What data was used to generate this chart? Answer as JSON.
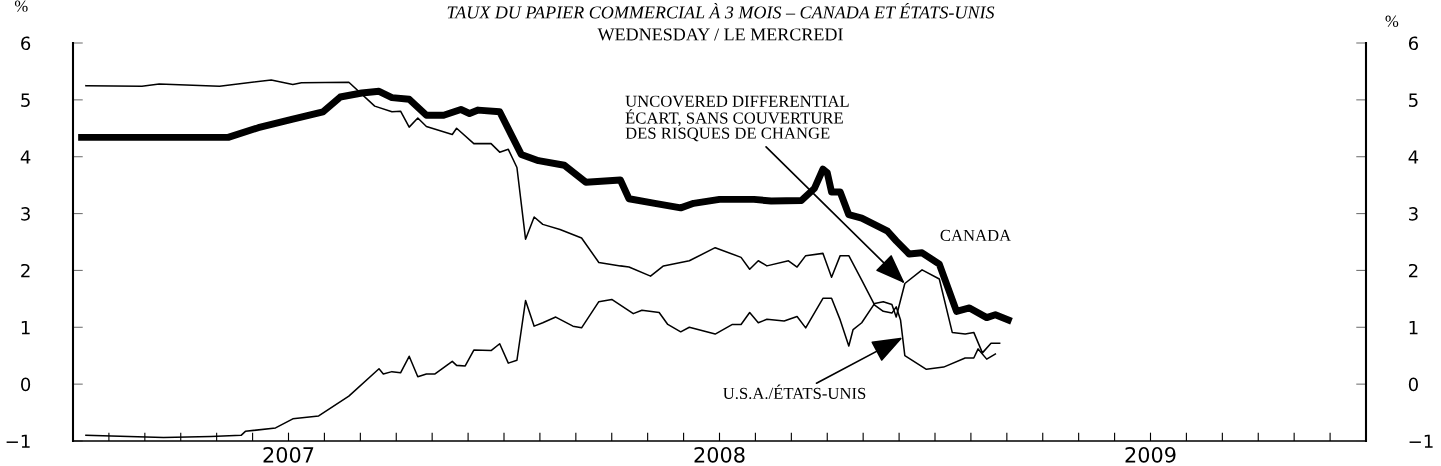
{
  "chart_data": {
    "type": "line",
    "title": "TAUX DU PAPIER COMMERCIAL À 3 MOIS – CANADA ET ÉTATS-UNIS",
    "subtitle": "WEDNESDAY / LE MERCREDI",
    "ylabel": "%",
    "y2label": "%",
    "xlim": [
      2007,
      2010
    ],
    "xticks": [
      {
        "value": 2007.5,
        "label": "2007"
      },
      {
        "value": 2008.5,
        "label": "2008"
      },
      {
        "value": 2009.5,
        "label": "2009"
      },
      {
        "value": 2007.0833,
        "label": null
      },
      {
        "value": 2007.1667,
        "label": null
      },
      {
        "value": 2007.25,
        "label": null
      },
      {
        "value": 2007.3333,
        "label": null
      },
      {
        "value": 2007.4167,
        "label": null
      },
      {
        "value": 2007.5,
        "label": null
      },
      {
        "value": 2007.5833,
        "label": null
      },
      {
        "value": 2007.6667,
        "label": null
      },
      {
        "value": 2007.75,
        "label": null
      },
      {
        "value": 2007.8333,
        "label": null
      },
      {
        "value": 2007.9167,
        "label": null
      },
      {
        "value": 2008,
        "label": null
      },
      {
        "value": 2008.0833,
        "label": null
      },
      {
        "value": 2008.1667,
        "label": null
      },
      {
        "value": 2008.25,
        "label": null
      },
      {
        "value": 2008.3333,
        "label": null
      },
      {
        "value": 2008.4167,
        "label": null
      },
      {
        "value": 2008.5,
        "label": null
      },
      {
        "value": 2008.5833,
        "label": null
      },
      {
        "value": 2008.6667,
        "label": null
      },
      {
        "value": 2008.75,
        "label": null
      },
      {
        "value": 2008.8333,
        "label": null
      },
      {
        "value": 2008.9167,
        "label": null
      },
      {
        "value": 2009,
        "label": null
      },
      {
        "value": 2009.0833,
        "label": null
      },
      {
        "value": 2009.1667,
        "label": null
      },
      {
        "value": 2009.25,
        "label": null
      },
      {
        "value": 2009.3333,
        "label": null
      },
      {
        "value": 2009.4167,
        "label": null
      },
      {
        "value": 2009.5,
        "label": null
      },
      {
        "value": 2009.5833,
        "label": null
      },
      {
        "value": 2009.6667,
        "label": null
      },
      {
        "value": 2009.75,
        "label": null
      },
      {
        "value": 2009.8333,
        "label": null
      },
      {
        "value": 2009.9167,
        "label": null
      }
    ],
    "ylim": [
      -1,
      6
    ],
    "yticks": [
      {
        "value": -1,
        "label": "−1"
      },
      0,
      1,
      2,
      3,
      4,
      5,
      6
    ],
    "y2lim": [
      -1,
      6
    ],
    "y2ticks": [
      {
        "value": -1,
        "label": "−1"
      },
      0,
      1,
      2,
      3,
      4,
      5,
      6
    ],
    "grid": false,
    "legend": false,
    "marker": "none",
    "line_style": "solid",
    "series": [
      {
        "color": "#000000",
        "x": [
          2007.02,
          2007.18,
          2007.36,
          2007.43,
          2007.51,
          2007.58,
          2007.62,
          2007.67,
          2007.71,
          2007.74,
          2007.78,
          2007.82,
          2007.86,
          2007.9,
          2007.92,
          2007.94,
          2007.99,
          2008.04,
          2008.08,
          2008.14,
          2008.19,
          2008.27,
          2008.29,
          2008.35,
          2008.41,
          2008.44,
          2008.5,
          2008.58,
          2008.62,
          2008.69,
          2008.72,
          2008.74,
          2008.75,
          2008.76,
          2008.78,
          2008.8,
          2008.83,
          2008.89,
          2008.91,
          2008.94,
          2008.97,
          2009.01,
          2009.05,
          2009.08,
          2009.12,
          2009.14,
          2009.17
        ],
        "values": [
          4.34,
          4.34,
          4.34,
          4.51,
          4.66,
          4.79,
          5.05,
          5.12,
          5.15,
          5.04,
          5.01,
          4.73,
          4.73,
          4.83,
          4.76,
          4.82,
          4.79,
          4.04,
          3.93,
          3.85,
          3.55,
          3.59,
          3.26,
          3.18,
          3.1,
          3.18,
          3.25,
          3.25,
          3.22,
          3.23,
          3.44,
          3.78,
          3.72,
          3.38,
          3.38,
          2.98,
          2.92,
          2.69,
          2.52,
          2.29,
          2.31,
          2.11,
          1.28,
          1.34,
          1.17,
          1.22,
          1.13
        ]
      },
      {
        "color": "#000000",
        "x": [
          2007.03,
          2007.16,
          2007.2,
          2007.34,
          2007.46,
          2007.51,
          2007.53,
          2007.64,
          2007.7,
          2007.74,
          2007.76,
          2007.78,
          2007.8,
          2007.82,
          2007.88,
          2007.89,
          2007.93,
          2007.97,
          2007.99,
          2008.01,
          2008.03,
          2008.05,
          2008.07,
          2008.09,
          2008.13,
          2008.18,
          2008.22,
          2008.27,
          2008.29,
          2008.34,
          2008.37,
          2008.43,
          2008.49,
          2008.55,
          2008.57,
          2008.59,
          2008.61,
          2008.66,
          2008.68,
          2008.7,
          2008.74,
          2008.76,
          2008.78,
          2008.8,
          2008.83,
          2008.86,
          2008.88,
          2008.9,
          2008.91,
          2008.92,
          2008.93,
          2008.98,
          2009.02,
          2009.07,
          2009.09,
          2009.1,
          2009.12,
          2009.14
        ],
        "values": [
          5.25,
          5.24,
          5.28,
          5.24,
          5.35,
          5.27,
          5.3,
          5.31,
          4.89,
          4.79,
          4.8,
          4.52,
          4.68,
          4.53,
          4.39,
          4.5,
          4.23,
          4.23,
          4.08,
          4.13,
          3.81,
          2.55,
          2.94,
          2.81,
          2.72,
          2.57,
          2.14,
          2.08,
          2.06,
          1.9,
          2.08,
          2.17,
          2.4,
          2.23,
          2.02,
          2.17,
          2.08,
          2.17,
          2.06,
          2.26,
          2.3,
          1.88,
          2.26,
          2.26,
          1.83,
          1.39,
          1.28,
          1.25,
          1.36,
          1.13,
          0.5,
          0.26,
          0.3,
          0.46,
          0.46,
          0.62,
          0.44,
          0.53
        ]
      },
      {
        "color": "#000000",
        "x": [
          2007.03,
          2007.21,
          2007.32,
          2007.39,
          2007.4,
          2007.47,
          2007.51,
          2007.57,
          2007.64,
          2007.71,
          2007.72,
          2007.74,
          2007.76,
          2007.78,
          2007.8,
          2007.82,
          2007.84,
          2007.88,
          2007.89,
          2007.91,
          2007.93,
          2007.97,
          2007.99,
          2008.01,
          2008.03,
          2008.05,
          2008.07,
          2008.09,
          2008.12,
          2008.16,
          2008.18,
          2008.22,
          2008.25,
          2008.3,
          2008.32,
          2008.36,
          2008.38,
          2008.41,
          2008.43,
          2008.49,
          2008.53,
          2008.55,
          2008.57,
          2008.59,
          2008.61,
          2008.65,
          2008.68,
          2008.7,
          2008.74,
          2008.76,
          2008.78,
          2008.8,
          2008.81,
          2008.83,
          2008.86,
          2008.88,
          2008.9,
          2008.91,
          2008.93,
          2008.97,
          2009.01,
          2009.04,
          2009.07,
          2009.09,
          2009.11,
          2009.13,
          2009.15
        ],
        "values": [
          -0.9,
          -0.94,
          -0.92,
          -0.9,
          -0.83,
          -0.77,
          -0.61,
          -0.56,
          -0.21,
          0.27,
          0.18,
          0.22,
          0.2,
          0.49,
          0.13,
          0.18,
          0.18,
          0.4,
          0.33,
          0.32,
          0.6,
          0.59,
          0.71,
          0.37,
          0.42,
          1.47,
          1.02,
          1.08,
          1.18,
          1.02,
          0.99,
          1.45,
          1.49,
          1.24,
          1.3,
          1.26,
          1.05,
          0.92,
          1.0,
          0.88,
          1.05,
          1.05,
          1.26,
          1.08,
          1.14,
          1.11,
          1.19,
          0.99,
          1.51,
          1.51,
          1.13,
          0.67,
          0.96,
          1.08,
          1.42,
          1.45,
          1.4,
          1.18,
          1.77,
          2.01,
          1.85,
          0.91,
          0.88,
          0.91,
          0.55,
          0.72,
          0.72
        ]
      }
    ],
    "annotations": [
      {
        "text": "CANADA",
        "x": 2009.01,
        "y": 2.11
      },
      {
        "text": "UNCOVERED DIFFERENTIAL\nÉCART, SANS COUVERTURE\nDES RISQUES DE CHANGE",
        "x": 2008.93,
        "y": 1.77
      },
      {
        "text": "U.S.A./ÉTATS-UNIS",
        "x": 2008.925,
        "y": 0.82
      }
    ]
  }
}
